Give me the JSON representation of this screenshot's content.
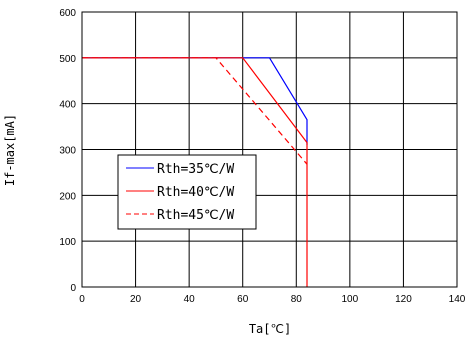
{
  "chart_data": {
    "type": "line",
    "xlabel": "Ta[℃]",
    "ylabel": "If-max[mA]",
    "xlim": [
      0,
      140
    ],
    "ylim": [
      0,
      600
    ],
    "xticks": [
      0,
      20,
      40,
      60,
      80,
      100,
      120,
      140
    ],
    "yticks": [
      0,
      100,
      200,
      300,
      400,
      500,
      600
    ],
    "grid": true,
    "legend_position": "lower-left",
    "series": [
      {
        "name": "Rth=35℃/W",
        "color": "#0000ff",
        "style": "solid",
        "points": [
          [
            0,
            500
          ],
          [
            70,
            500
          ],
          [
            84,
            365
          ],
          [
            84,
            310
          ]
        ]
      },
      {
        "name": "Rth=40℃/W",
        "color": "#ff0000",
        "style": "solid",
        "points": [
          [
            0,
            500
          ],
          [
            60,
            500
          ],
          [
            84,
            315
          ],
          [
            84,
            0
          ]
        ]
      },
      {
        "name": "Rth=45℃/W",
        "color": "#ff0000",
        "style": "dashed",
        "points": [
          [
            0,
            500
          ],
          [
            50,
            500
          ],
          [
            84,
            268
          ]
        ]
      }
    ]
  }
}
